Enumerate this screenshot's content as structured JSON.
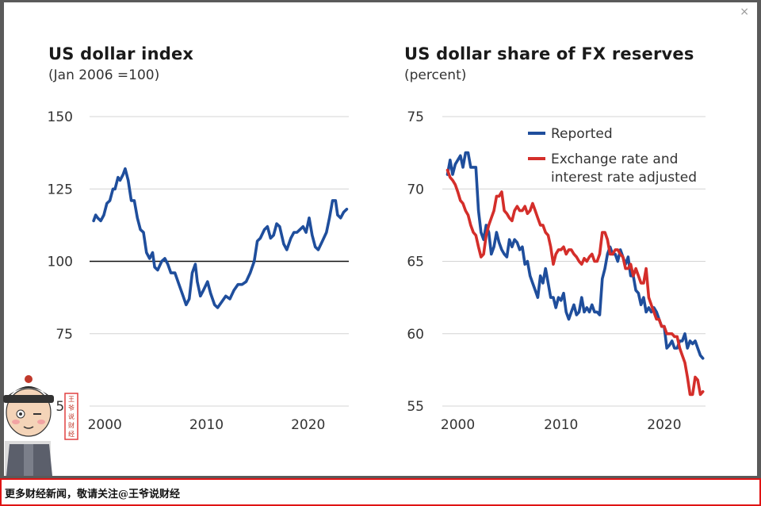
{
  "modal": {
    "close_label": "×"
  },
  "footer": {
    "text": "更多财经新闻，敬请关注@王爷说财经"
  },
  "watermark": {
    "stamp_text": "王爷说财经"
  },
  "chart_data": [
    {
      "type": "line",
      "title": "US dollar index",
      "subtitle": "(Jan 2006 =100)",
      "xlabel": "",
      "ylabel": "",
      "xlim": [
        1998.5,
        2024
      ],
      "ylim": [
        50,
        150
      ],
      "yticks": [
        50,
        75,
        100,
        125,
        150
      ],
      "ytick_labels": [
        "50",
        "75",
        "100",
        "125",
        "150"
      ],
      "xticks": [
        2000,
        2010,
        2020
      ],
      "xtick_labels": [
        "2000",
        "2010",
        "2020"
      ],
      "grid": true,
      "reference_line": 100,
      "series": [
        {
          "color": "#1f4e9c",
          "x": [
            1998.9,
            1999.1,
            1999.3,
            1999.6,
            1999.9,
            2000.2,
            2000.5,
            2000.8,
            2001.0,
            2001.3,
            2001.5,
            2001.8,
            2002.0,
            2002.3,
            2002.6,
            2002.9,
            2003.2,
            2003.5,
            2003.8,
            2004.1,
            2004.4,
            2004.7,
            2004.9,
            2005.2,
            2005.6,
            2005.9,
            2006.2,
            2006.5,
            2006.9,
            2007.3,
            2007.7,
            2008.0,
            2008.3,
            2008.6,
            2008.9,
            2009.1,
            2009.4,
            2009.7,
            2010.1,
            2010.4,
            2010.8,
            2011.1,
            2011.5,
            2011.9,
            2012.3,
            2012.7,
            2013.1,
            2013.5,
            2013.9,
            2014.3,
            2014.7,
            2015.0,
            2015.3,
            2015.7,
            2016.0,
            2016.3,
            2016.6,
            2016.9,
            2017.2,
            2017.6,
            2017.9,
            2018.3,
            2018.6,
            2018.9,
            2019.2,
            2019.5,
            2019.8,
            2020.1,
            2020.4,
            2020.7,
            2021.0,
            2021.4,
            2021.8,
            2022.1,
            2022.4,
            2022.7,
            2022.9,
            2023.2,
            2023.5,
            2023.8
          ],
          "y": [
            114,
            116,
            115,
            114,
            116,
            120,
            121,
            125,
            125,
            129,
            128,
            130,
            132,
            128,
            121,
            121,
            115,
            111,
            110,
            103,
            101,
            103,
            98,
            97,
            100,
            101,
            99,
            96,
            96,
            92,
            88,
            85,
            87,
            96,
            99,
            93,
            88,
            90,
            93,
            89,
            85,
            84,
            86,
            88,
            87,
            90,
            92,
            92,
            93,
            96,
            100,
            107,
            108,
            111,
            112,
            108,
            109,
            113,
            112,
            106,
            104,
            108,
            110,
            110,
            111,
            112,
            110,
            115,
            109,
            105,
            104,
            107,
            110,
            115,
            121,
            121,
            116,
            115,
            117,
            118
          ]
        }
      ]
    },
    {
      "type": "line",
      "title": "US dollar share of FX reserves",
      "subtitle": "(percent)",
      "xlabel": "",
      "ylabel": "",
      "xlim": [
        1998.5,
        2024
      ],
      "ylim": [
        55,
        75
      ],
      "yticks": [
        55,
        60,
        65,
        70,
        75
      ],
      "ytick_labels": [
        "55",
        "60",
        "65",
        "70",
        "75"
      ],
      "xticks": [
        2000,
        2010,
        2020
      ],
      "xtick_labels": [
        "2000",
        "2010",
        "2020"
      ],
      "grid": true,
      "legend_position": "top-right",
      "series": [
        {
          "name": "Reported",
          "color": "#1f4e9c",
          "x": [
            1999.0,
            1999.25,
            1999.5,
            1999.75,
            2000.0,
            2000.25,
            2000.5,
            2000.75,
            2001.0,
            2001.25,
            2001.5,
            2001.75,
            2002.0,
            2002.25,
            2002.5,
            2002.75,
            2003.0,
            2003.25,
            2003.5,
            2003.75,
            2004.0,
            2004.25,
            2004.5,
            2004.75,
            2005.0,
            2005.25,
            2005.5,
            2005.75,
            2006.0,
            2006.25,
            2006.5,
            2006.75,
            2007.0,
            2007.25,
            2007.5,
            2007.75,
            2008.0,
            2008.25,
            2008.5,
            2008.75,
            2009.0,
            2009.25,
            2009.5,
            2009.75,
            2010.0,
            2010.25,
            2010.5,
            2010.75,
            2011.0,
            2011.25,
            2011.5,
            2011.75,
            2012.0,
            2012.25,
            2012.5,
            2012.75,
            2013.0,
            2013.25,
            2013.5,
            2013.75,
            2014.0,
            2014.25,
            2014.5,
            2014.75,
            2015.0,
            2015.25,
            2015.5,
            2015.75,
            2016.0,
            2016.25,
            2016.5,
            2016.75,
            2017.0,
            2017.25,
            2017.5,
            2017.75,
            2018.0,
            2018.25,
            2018.5,
            2018.75,
            2019.0,
            2019.25,
            2019.5,
            2019.75,
            2020.0,
            2020.25,
            2020.5,
            2020.75,
            2021.0,
            2021.25,
            2021.5,
            2021.75,
            2022.0,
            2022.25,
            2022.5,
            2022.75,
            2023.0,
            2023.25,
            2023.5,
            2023.75
          ],
          "y": [
            71.0,
            72.0,
            71.0,
            71.7,
            72.0,
            72.3,
            71.5,
            72.5,
            72.5,
            71.5,
            71.5,
            71.5,
            68.5,
            67.0,
            66.5,
            67.5,
            67.0,
            65.5,
            66.0,
            67.0,
            66.3,
            65.8,
            65.5,
            65.3,
            66.5,
            66.0,
            66.5,
            66.3,
            65.8,
            66.0,
            64.8,
            65.0,
            64.0,
            63.5,
            63.0,
            62.5,
            64.0,
            63.5,
            64.5,
            63.5,
            62.5,
            62.5,
            61.8,
            62.5,
            62.3,
            62.8,
            61.5,
            61.0,
            61.5,
            62.0,
            61.3,
            61.5,
            62.5,
            61.5,
            61.8,
            61.5,
            62.0,
            61.5,
            61.5,
            61.3,
            63.8,
            64.5,
            65.5,
            66.0,
            65.5,
            65.5,
            65.0,
            65.8,
            65.3,
            64.8,
            65.3,
            64.0,
            64.0,
            63.0,
            62.8,
            62.0,
            62.5,
            61.5,
            61.8,
            61.5,
            61.8,
            61.5,
            61.0,
            60.5,
            60.5,
            59.0,
            59.2,
            59.5,
            59.0,
            59.0,
            59.5,
            59.5,
            60.0,
            59.0,
            59.5,
            59.3,
            59.5,
            59.0,
            58.5,
            58.3
          ]
        },
        {
          "name": "Exchange rate and interest rate adjusted",
          "color": "#d42e2a",
          "x": [
            1999.0,
            1999.25,
            1999.5,
            1999.75,
            2000.0,
            2000.25,
            2000.5,
            2000.75,
            2001.0,
            2001.25,
            2001.5,
            2001.75,
            2002.0,
            2002.25,
            2002.5,
            2002.75,
            2003.0,
            2003.25,
            2003.5,
            2003.75,
            2004.0,
            2004.25,
            2004.5,
            2004.75,
            2005.0,
            2005.25,
            2005.5,
            2005.75,
            2006.0,
            2006.25,
            2006.5,
            2006.75,
            2007.0,
            2007.25,
            2007.5,
            2007.75,
            2008.0,
            2008.25,
            2008.5,
            2008.75,
            2009.0,
            2009.25,
            2009.5,
            2009.75,
            2010.0,
            2010.25,
            2010.5,
            2010.75,
            2011.0,
            2011.25,
            2011.5,
            2011.75,
            2012.0,
            2012.25,
            2012.5,
            2012.75,
            2013.0,
            2013.25,
            2013.5,
            2013.75,
            2014.0,
            2014.25,
            2014.5,
            2014.75,
            2015.0,
            2015.25,
            2015.5,
            2015.75,
            2016.0,
            2016.25,
            2016.5,
            2016.75,
            2017.0,
            2017.25,
            2017.5,
            2017.75,
            2018.0,
            2018.25,
            2018.5,
            2018.75,
            2019.0,
            2019.25,
            2019.5,
            2019.75,
            2020.0,
            2020.25,
            2020.5,
            2020.75,
            2021.0,
            2021.25,
            2021.5,
            2021.75,
            2022.0,
            2022.25,
            2022.5,
            2022.75,
            2023.0,
            2023.25,
            2023.5,
            2023.75
          ],
          "y": [
            71.3,
            70.8,
            70.6,
            70.3,
            69.8,
            69.2,
            69.0,
            68.5,
            68.2,
            67.5,
            67.0,
            66.8,
            66.0,
            65.3,
            65.5,
            66.8,
            67.5,
            68.0,
            68.5,
            69.5,
            69.5,
            69.8,
            68.5,
            68.3,
            68.0,
            67.8,
            68.5,
            68.8,
            68.5,
            68.5,
            68.8,
            68.3,
            68.5,
            69.0,
            68.5,
            68.0,
            67.5,
            67.5,
            67.0,
            66.8,
            66.0,
            64.8,
            65.5,
            65.8,
            65.8,
            66.0,
            65.5,
            65.8,
            65.8,
            65.5,
            65.3,
            65.0,
            64.8,
            65.2,
            65.0,
            65.3,
            65.5,
            65.0,
            65.0,
            65.5,
            67.0,
            67.0,
            66.5,
            65.5,
            65.5,
            65.8,
            65.8,
            65.5,
            65.3,
            64.5,
            64.5,
            64.8,
            64.0,
            64.5,
            64.0,
            63.5,
            63.5,
            64.5,
            62.5,
            62.0,
            61.5,
            61.0,
            61.0,
            60.5,
            60.5,
            60.0,
            60.0,
            60.0,
            59.8,
            59.8,
            59.0,
            58.5,
            58.0,
            57.0,
            55.8,
            55.8,
            57.0,
            56.8,
            55.8,
            56.0
          ]
        }
      ]
    }
  ]
}
